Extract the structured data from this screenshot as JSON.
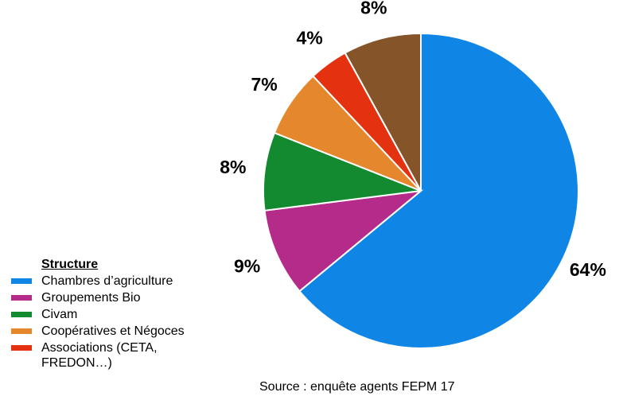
{
  "chart_data": {
    "type": "pie",
    "categories": [
      "Chambres d’agriculture",
      "Groupements Bio",
      "Civam",
      "Coopératives et Négoces",
      "Associations (CETA, FREDON…)",
      ""
    ],
    "values": [
      64,
      9,
      8,
      7,
      4,
      8
    ],
    "value_labels": [
      "64%",
      "9%",
      "8%",
      "7%",
      "4%",
      "8%"
    ],
    "colors": [
      "#0f86e6",
      "#b52b8a",
      "#138a2f",
      "#e5882d",
      "#e43210",
      "#865429"
    ],
    "start": "top",
    "direction": "clockwise",
    "legend_title": "Structure",
    "legend_placement": "bottom-left"
  },
  "footer": {
    "source_text": "Source : enquête agents FEPM 17"
  }
}
